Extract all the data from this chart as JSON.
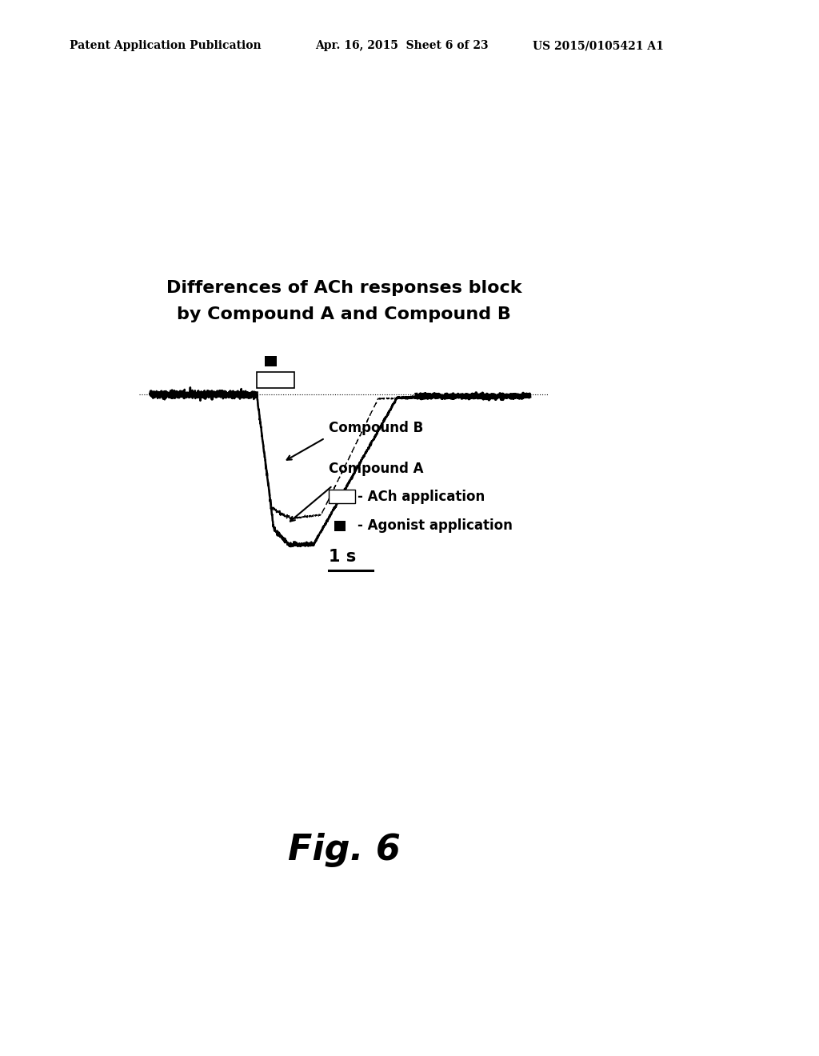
{
  "title_line1": "Differences of ACh responses block",
  "title_line2": "by Compound A and Compound B",
  "header_left": "Patent Application Publication",
  "header_mid": "Apr. 16, 2015  Sheet 6 of 23",
  "header_right": "US 2015/0105421 A1",
  "fig_label": "Fig. 6",
  "legend_compound_b": "Compound B",
  "legend_compound_a": "Compound A",
  "legend_ach": "- ACh application",
  "legend_agonist": "- Agonist application",
  "scale_label": "1 s",
  "bg_color": "#ffffff",
  "text_color": "#000000",
  "title_fontsize": 16,
  "header_fontsize": 10,
  "fig_label_fontsize": 32,
  "annotation_fontsize": 12
}
